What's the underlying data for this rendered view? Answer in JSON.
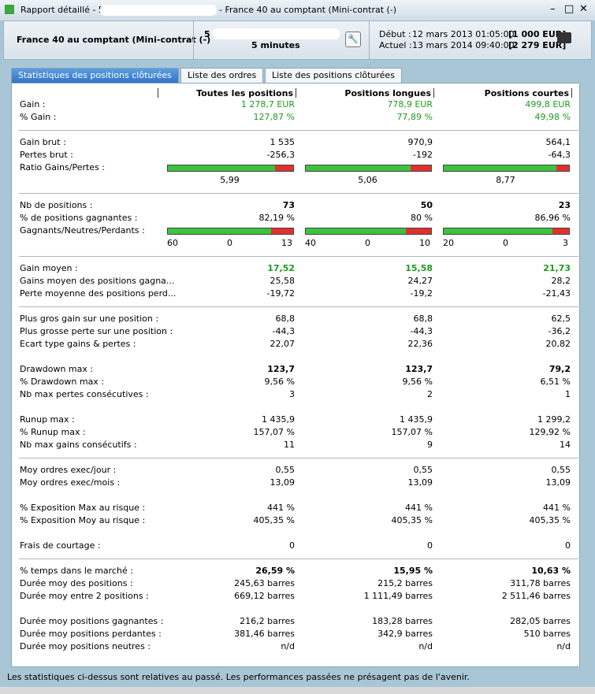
{
  "window": {
    "title_prefix": "Rapport détaillé - 5 s",
    "title_suffix": "- France 40 au comptant (Mini-contrat  (-)"
  },
  "header": {
    "instrument": "France 40 au comptant (Mini-contrat  (-)",
    "code": "5",
    "period": "5 minutes",
    "start_label": "Début :",
    "start_date": "12 mars 2013 01:05:00",
    "start_capital": "[1 000 EUR]",
    "current_label": "Actuel :",
    "current_date": "13 mars 2014 09:40:00",
    "current_capital": "[2 279 EUR]"
  },
  "tabs": [
    "Statistiques des positions clôturées",
    "Liste des ordres",
    "Liste des positions clôturées"
  ],
  "active_tab": 0,
  "columns": [
    "Toutes les positions",
    "Positions longues",
    "Positions courtes"
  ],
  "groups": [
    {
      "rule_after": true,
      "rows": [
        {
          "label": "Gain :",
          "values": [
            "1 278,7 EUR",
            "778,9 EUR",
            "499,8 EUR"
          ],
          "style": "green"
        },
        {
          "label": "% Gain :",
          "values": [
            "127,87 %",
            "77,89 %",
            "49,98 %"
          ],
          "style": "green"
        }
      ]
    },
    {
      "rule_after": true,
      "rows": [
        {
          "label": "Gain brut :",
          "values": [
            "1 535",
            "970,9",
            "564,1"
          ]
        },
        {
          "label": "Pertes brut :",
          "values": [
            "-256,3",
            "-192",
            "-64,3"
          ]
        },
        {
          "label": "Ratio Gains/Pertes :",
          "kind": "ratio",
          "values": [
            5.99,
            5.06,
            8.77
          ],
          "value_labels": [
            "5,99",
            "5,06",
            "8,77"
          ]
        }
      ]
    },
    {
      "rule_after": true,
      "rows": [
        {
          "label": "Nb de positions :",
          "values": [
            "73",
            "50",
            "23"
          ],
          "style": "bold"
        },
        {
          "label": "% de positions gagnantes :",
          "values": [
            "82,19 %",
            "80 %",
            "86,96 %"
          ]
        },
        {
          "label": "Gagnants/Neutres/Perdants :",
          "kind": "counts",
          "values": [
            [
              60,
              0,
              13
            ],
            [
              40,
              0,
              10
            ],
            [
              20,
              0,
              3
            ]
          ]
        }
      ]
    },
    {
      "rule_after": true,
      "rows": [
        {
          "label": "Gain moyen :",
          "values": [
            "17,52",
            "15,58",
            "21,73"
          ],
          "style": "green-bold"
        },
        {
          "label": "Gains moyen des positions gagna...",
          "values": [
            "25,58",
            "24,27",
            "28,2"
          ]
        },
        {
          "label": "Perte moyenne des positions perd...",
          "values": [
            "-19,72",
            "-19,2",
            "-21,43"
          ]
        }
      ]
    },
    {
      "rule_after": false,
      "rows": [
        {
          "label": "Plus gros gain sur une position :",
          "values": [
            "68,8",
            "68,8",
            "62,5"
          ]
        },
        {
          "label": "Plus grosse perte sur une position :",
          "values": [
            "-44,3",
            "-44,3",
            "-36,2"
          ]
        },
        {
          "label": "Ecart type gains & pertes :",
          "values": [
            "22,07",
            "22,36",
            "20,82"
          ]
        }
      ]
    },
    {
      "rule_after": false,
      "rows": [
        {
          "label": "Drawdown max :",
          "values": [
            "123,7",
            "123,7",
            "79,2"
          ],
          "style": "bold"
        },
        {
          "label": "% Drawdown max :",
          "values": [
            "9,56 %",
            "9,56 %",
            "6,51 %"
          ]
        },
        {
          "label": "Nb max pertes consécutives :",
          "values": [
            "3",
            "2",
            "1"
          ]
        }
      ]
    },
    {
      "rule_after": true,
      "rows": [
        {
          "label": "Runup max :",
          "values": [
            "1 435,9",
            "1 435,9",
            "1 299,2"
          ]
        },
        {
          "label": "% Runup max :",
          "values": [
            "157,07 %",
            "157,07 %",
            "129,92 %"
          ]
        },
        {
          "label": "Nb max gains consécutifs :",
          "values": [
            "11",
            "9",
            "14"
          ]
        }
      ]
    },
    {
      "rule_after": false,
      "rows": [
        {
          "label": "Moy ordres exec/jour :",
          "values": [
            "0,55",
            "0,55",
            "0,55"
          ]
        },
        {
          "label": "Moy ordres exec/mois :",
          "values": [
            "13,09",
            "13,09",
            "13,09"
          ]
        }
      ]
    },
    {
      "rule_after": false,
      "rows": [
        {
          "label": "% Exposition Max au risque :",
          "values": [
            "441 %",
            "441 %",
            "441 %"
          ]
        },
        {
          "label": "% Exposition Moy au risque :",
          "values": [
            "405,35 %",
            "405,35 %",
            "405,35 %"
          ]
        }
      ]
    },
    {
      "rule_after": true,
      "rows": [
        {
          "label": "Frais de courtage :",
          "values": [
            "0",
            "0",
            "0"
          ]
        }
      ]
    },
    {
      "rule_after": false,
      "rows": [
        {
          "label": "% temps dans le marché :",
          "values": [
            "26,59 %",
            "15,95 %",
            "10,63 %"
          ],
          "style": "bold"
        },
        {
          "label": "Durée moy des positions :",
          "values": [
            "245,63 barres",
            "215,2 barres",
            "311,78 barres"
          ]
        },
        {
          "label": "Durée moy entre 2 positions :",
          "values": [
            "669,12 barres",
            "1 111,49 barres",
            "2 511,46 barres"
          ]
        }
      ]
    },
    {
      "rule_after": false,
      "rows": [
        {
          "label": "Durée moy positions gagnantes :",
          "values": [
            "216,2 barres",
            "183,28 barres",
            "282,05 barres"
          ]
        },
        {
          "label": "Durée moy positions perdantes :",
          "values": [
            "381,46 barres",
            "342,9 barres",
            "510 barres"
          ]
        },
        {
          "label": "Durée moy positions neutres :",
          "values": [
            "n/d",
            "n/d",
            "n/d"
          ]
        }
      ]
    }
  ],
  "footer": "Les statistiques ci-dessus sont relatives au passé. Les performances passées ne présagent pas de l'avenir."
}
